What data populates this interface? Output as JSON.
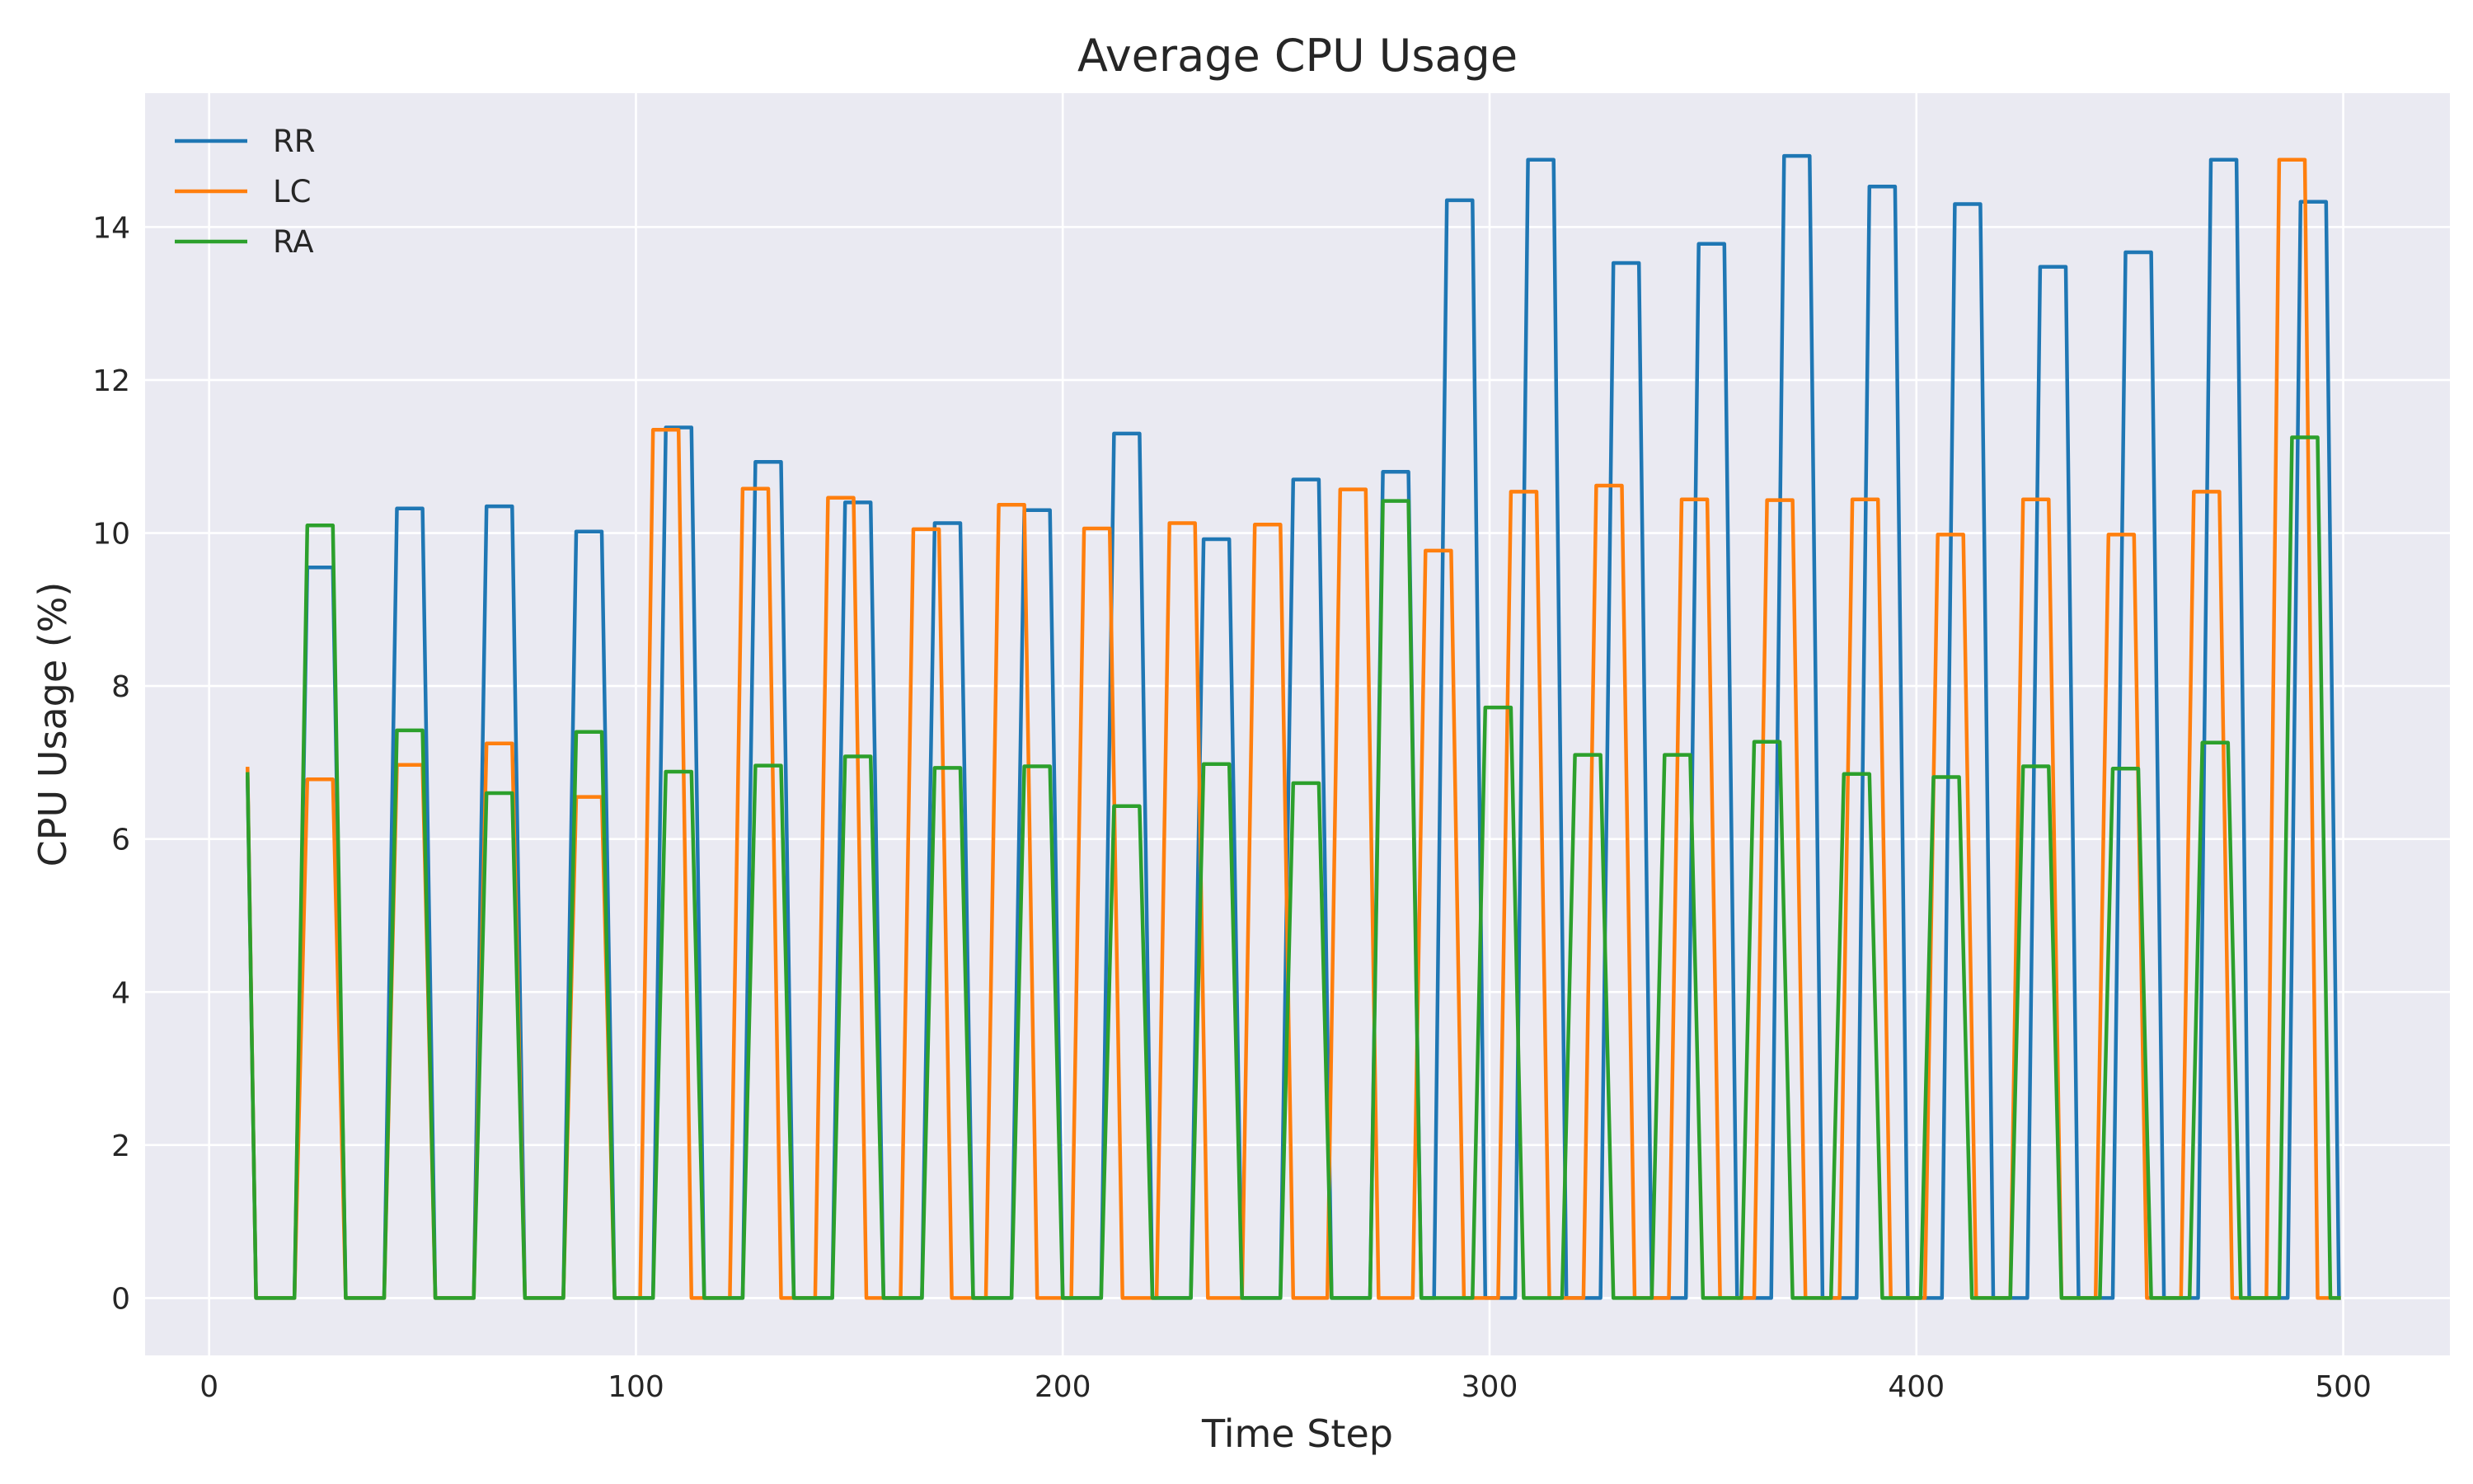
{
  "chart_data": {
    "type": "line",
    "title": "Average CPU Usage",
    "xlabel": "Time Step",
    "ylabel": "CPU Usage (%)",
    "xlim": [
      -15,
      525
    ],
    "ylim": [
      -0.75,
      15.75
    ],
    "x_ticks": [
      0,
      100,
      200,
      300,
      400,
      500
    ],
    "x_tick_labels": [
      "0",
      "100",
      "200",
      "300",
      "400",
      "500"
    ],
    "y_ticks": [
      0,
      2,
      4,
      6,
      8,
      10,
      12,
      14
    ],
    "y_tick_labels": [
      "0",
      "2",
      "4",
      "6",
      "8",
      "10",
      "12",
      "14"
    ],
    "grid": true,
    "legend_position": "top-left",
    "background": "#eaeaf2",
    "series": [
      {
        "name": "RR",
        "color": "#1f77b4",
        "points": [
          [
            9,
            6.8
          ],
          [
            11,
            0
          ],
          [
            20,
            0
          ],
          [
            23,
            9.55
          ],
          [
            29,
            9.55
          ],
          [
            32,
            0
          ],
          [
            41,
            0
          ],
          [
            44,
            10.32
          ],
          [
            50,
            10.32
          ],
          [
            53,
            0
          ],
          [
            62,
            0
          ],
          [
            65,
            10.35
          ],
          [
            71,
            10.35
          ],
          [
            74,
            0
          ],
          [
            83,
            0
          ],
          [
            86,
            10.02
          ],
          [
            92,
            10.02
          ],
          [
            95,
            0
          ],
          [
            104,
            0
          ],
          [
            107,
            11.38
          ],
          [
            113,
            11.38
          ],
          [
            116,
            0
          ],
          [
            125,
            0
          ],
          [
            128,
            10.93
          ],
          [
            134,
            10.93
          ],
          [
            137,
            0
          ],
          [
            146,
            0
          ],
          [
            149,
            10.4
          ],
          [
            155,
            10.4
          ],
          [
            158,
            0
          ],
          [
            167,
            0
          ],
          [
            170,
            10.13
          ],
          [
            176,
            10.13
          ],
          [
            179,
            0
          ],
          [
            188,
            0
          ],
          [
            191,
            10.3
          ],
          [
            197,
            10.3
          ],
          [
            200,
            0
          ],
          [
            209,
            0
          ],
          [
            212,
            11.3
          ],
          [
            218,
            11.3
          ],
          [
            221,
            0
          ],
          [
            230,
            0
          ],
          [
            233,
            9.92
          ],
          [
            239,
            9.92
          ],
          [
            242,
            0
          ],
          [
            251,
            0
          ],
          [
            254,
            10.7
          ],
          [
            260,
            10.7
          ],
          [
            263,
            0
          ],
          [
            272,
            0
          ],
          [
            275,
            10.8
          ],
          [
            281,
            10.8
          ],
          [
            284,
            0
          ],
          [
            287,
            0
          ],
          [
            290,
            14.35
          ],
          [
            296,
            14.35
          ],
          [
            299,
            0
          ],
          [
            306,
            0
          ],
          [
            309,
            14.88
          ],
          [
            315,
            14.88
          ],
          [
            318,
            0
          ],
          [
            326,
            0
          ],
          [
            329,
            13.53
          ],
          [
            335,
            13.53
          ],
          [
            338,
            0
          ],
          [
            346,
            0
          ],
          [
            349,
            13.78
          ],
          [
            355,
            13.78
          ],
          [
            358,
            0
          ],
          [
            366,
            0
          ],
          [
            369,
            14.93
          ],
          [
            375,
            14.93
          ],
          [
            378,
            0
          ],
          [
            386,
            0
          ],
          [
            389,
            14.53
          ],
          [
            395,
            14.53
          ],
          [
            398,
            0
          ],
          [
            406,
            0
          ],
          [
            409,
            14.3
          ],
          [
            415,
            14.3
          ],
          [
            418,
            0
          ],
          [
            426,
            0
          ],
          [
            429,
            13.48
          ],
          [
            435,
            13.48
          ],
          [
            438,
            0
          ],
          [
            446,
            0
          ],
          [
            449,
            13.67
          ],
          [
            455,
            13.67
          ],
          [
            458,
            0
          ],
          [
            466,
            0
          ],
          [
            469,
            14.88
          ],
          [
            475,
            14.88
          ],
          [
            478,
            0
          ],
          [
            487,
            0
          ],
          [
            490,
            14.33
          ],
          [
            496,
            14.33
          ],
          [
            499,
            0
          ]
        ]
      },
      {
        "name": "LC",
        "color": "#ff7f0e",
        "points": [
          [
            9,
            6.92
          ],
          [
            11,
            0
          ],
          [
            20,
            0
          ],
          [
            23,
            6.78
          ],
          [
            29,
            6.78
          ],
          [
            32,
            0
          ],
          [
            41,
            0
          ],
          [
            44,
            6.97
          ],
          [
            50,
            6.97
          ],
          [
            53,
            0
          ],
          [
            62,
            0
          ],
          [
            65,
            7.25
          ],
          [
            71,
            7.25
          ],
          [
            74,
            0
          ],
          [
            83,
            0
          ],
          [
            86,
            6.55
          ],
          [
            92,
            6.55
          ],
          [
            95,
            0
          ],
          [
            101,
            0
          ],
          [
            104,
            11.35
          ],
          [
            110,
            11.35
          ],
          [
            113,
            0
          ],
          [
            122,
            0
          ],
          [
            125,
            10.58
          ],
          [
            131,
            10.58
          ],
          [
            134,
            0
          ],
          [
            142,
            0
          ],
          [
            145,
            10.46
          ],
          [
            151,
            10.46
          ],
          [
            154,
            0
          ],
          [
            162,
            0
          ],
          [
            165,
            10.05
          ],
          [
            171,
            10.05
          ],
          [
            174,
            0
          ],
          [
            182,
            0
          ],
          [
            185,
            10.37
          ],
          [
            191,
            10.37
          ],
          [
            194,
            0
          ],
          [
            202,
            0
          ],
          [
            205,
            10.06
          ],
          [
            211,
            10.06
          ],
          [
            214,
            0
          ],
          [
            222,
            0
          ],
          [
            225,
            10.13
          ],
          [
            231,
            10.13
          ],
          [
            234,
            0
          ],
          [
            242,
            0
          ],
          [
            245,
            10.11
          ],
          [
            251,
            10.11
          ],
          [
            254,
            0
          ],
          [
            262,
            0
          ],
          [
            265,
            10.57
          ],
          [
            271,
            10.57
          ],
          [
            274,
            0
          ],
          [
            282,
            0
          ],
          [
            285,
            9.77
          ],
          [
            291,
            9.77
          ],
          [
            294,
            0
          ],
          [
            302,
            0
          ],
          [
            305,
            10.54
          ],
          [
            311,
            10.54
          ],
          [
            314,
            0
          ],
          [
            322,
            0
          ],
          [
            325,
            10.62
          ],
          [
            331,
            10.62
          ],
          [
            334,
            0
          ],
          [
            342,
            0
          ],
          [
            345,
            10.44
          ],
          [
            351,
            10.44
          ],
          [
            354,
            0
          ],
          [
            362,
            0
          ],
          [
            365,
            10.43
          ],
          [
            371,
            10.43
          ],
          [
            374,
            0
          ],
          [
            382,
            0
          ],
          [
            385,
            10.44
          ],
          [
            391,
            10.44
          ],
          [
            394,
            0
          ],
          [
            402,
            0
          ],
          [
            405,
            9.98
          ],
          [
            411,
            9.98
          ],
          [
            414,
            0
          ],
          [
            422,
            0
          ],
          [
            425,
            10.44
          ],
          [
            431,
            10.44
          ],
          [
            434,
            0
          ],
          [
            442,
            0
          ],
          [
            445,
            9.98
          ],
          [
            451,
            9.98
          ],
          [
            454,
            0
          ],
          [
            462,
            0
          ],
          [
            465,
            10.54
          ],
          [
            471,
            10.54
          ],
          [
            474,
            0
          ],
          [
            482,
            0
          ],
          [
            485,
            14.88
          ],
          [
            491,
            14.88
          ],
          [
            494,
            0
          ],
          [
            499,
            0
          ]
        ]
      },
      {
        "name": "RA",
        "color": "#2ca02c",
        "points": [
          [
            9,
            6.85
          ],
          [
            11,
            0
          ],
          [
            20,
            0
          ],
          [
            23,
            10.1
          ],
          [
            29,
            10.1
          ],
          [
            32,
            0
          ],
          [
            41,
            0
          ],
          [
            44,
            7.42
          ],
          [
            50,
            7.42
          ],
          [
            53,
            0
          ],
          [
            62,
            0
          ],
          [
            65,
            6.6
          ],
          [
            71,
            6.6
          ],
          [
            74,
            0
          ],
          [
            83,
            0
          ],
          [
            86,
            7.4
          ],
          [
            92,
            7.4
          ],
          [
            95,
            0
          ],
          [
            104,
            0
          ],
          [
            107,
            6.88
          ],
          [
            113,
            6.88
          ],
          [
            116,
            0
          ],
          [
            125,
            0
          ],
          [
            128,
            6.96
          ],
          [
            134,
            6.96
          ],
          [
            137,
            0
          ],
          [
            146,
            0
          ],
          [
            149,
            7.08
          ],
          [
            155,
            7.08
          ],
          [
            158,
            0
          ],
          [
            167,
            0
          ],
          [
            170,
            6.93
          ],
          [
            176,
            6.93
          ],
          [
            179,
            0
          ],
          [
            188,
            0
          ],
          [
            191,
            6.95
          ],
          [
            197,
            6.95
          ],
          [
            200,
            0
          ],
          [
            209,
            0
          ],
          [
            212,
            6.43
          ],
          [
            218,
            6.43
          ],
          [
            221,
            0
          ],
          [
            230,
            0
          ],
          [
            233,
            6.98
          ],
          [
            239,
            6.98
          ],
          [
            242,
            0
          ],
          [
            251,
            0
          ],
          [
            254,
            6.73
          ],
          [
            260,
            6.73
          ],
          [
            263,
            0
          ],
          [
            272,
            0
          ],
          [
            275,
            10.42
          ],
          [
            281,
            10.42
          ],
          [
            284,
            0
          ],
          [
            296,
            0
          ],
          [
            299,
            7.72
          ],
          [
            305,
            7.72
          ],
          [
            308,
            0
          ],
          [
            317,
            0
          ],
          [
            320,
            7.1
          ],
          [
            326,
            7.1
          ],
          [
            329,
            0
          ],
          [
            338,
            0
          ],
          [
            341,
            7.1
          ],
          [
            347,
            7.1
          ],
          [
            350,
            0
          ],
          [
            359,
            0
          ],
          [
            362,
            7.27
          ],
          [
            368,
            7.27
          ],
          [
            371,
            0
          ],
          [
            380,
            0
          ],
          [
            383,
            6.85
          ],
          [
            389,
            6.85
          ],
          [
            392,
            0
          ],
          [
            401,
            0
          ],
          [
            404,
            6.81
          ],
          [
            410,
            6.81
          ],
          [
            413,
            0
          ],
          [
            422,
            0
          ],
          [
            425,
            6.95
          ],
          [
            431,
            6.95
          ],
          [
            434,
            0
          ],
          [
            443,
            0
          ],
          [
            446,
            6.92
          ],
          [
            452,
            6.92
          ],
          [
            455,
            0
          ],
          [
            464,
            0
          ],
          [
            467,
            7.26
          ],
          [
            473,
            7.26
          ],
          [
            476,
            0
          ],
          [
            485,
            0
          ],
          [
            488,
            11.25
          ],
          [
            494,
            11.25
          ],
          [
            497,
            0
          ],
          [
            499,
            0
          ]
        ]
      }
    ]
  }
}
